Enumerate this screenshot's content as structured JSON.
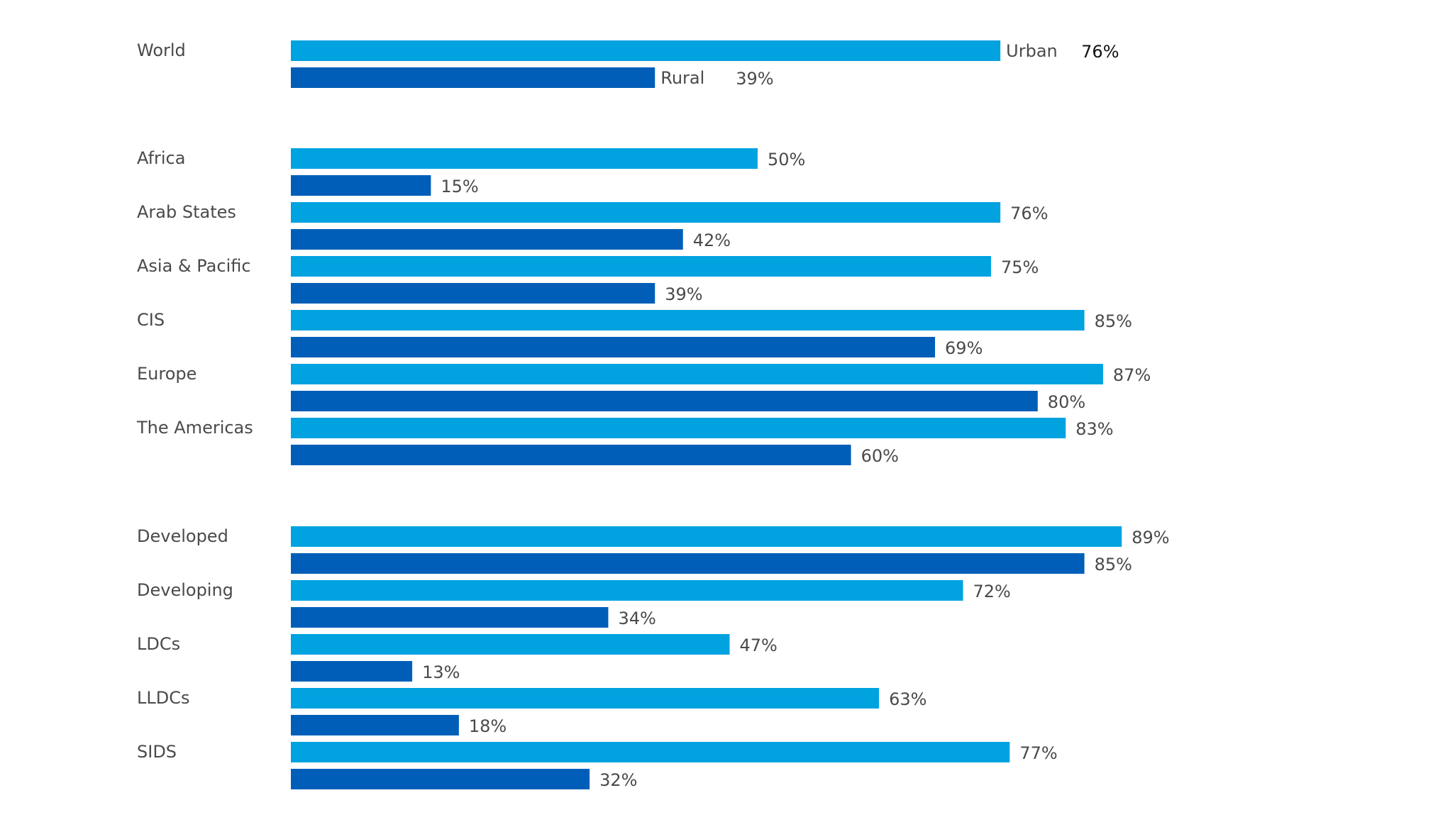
{
  "chart_data": {
    "type": "bar",
    "orientation": "horizontal",
    "categories": [
      "World",
      "Africa",
      "Arab States",
      "Asia & Pacific",
      "CIS",
      "Europe",
      "The Americas",
      "Developed",
      "Developing",
      "LDCs",
      "LLDCs",
      "SIDS"
    ],
    "groups": [
      [
        "World"
      ],
      [
        "Africa",
        "Arab States",
        "Asia & Pacific",
        "CIS",
        "Europe",
        "The Americas"
      ],
      [
        "Developed",
        "Developing",
        "LDCs",
        "LLDCs",
        "SIDS"
      ]
    ],
    "series": [
      {
        "name": "Urban",
        "color": "#00a2e0",
        "values": [
          76,
          50,
          76,
          75,
          85,
          87,
          83,
          89,
          72,
          47,
          63,
          77
        ]
      },
      {
        "name": "Rural",
        "color": "#005eb8",
        "values": [
          39,
          15,
          42,
          39,
          69,
          80,
          60,
          85,
          34,
          13,
          18,
          32
        ]
      }
    ],
    "value_suffix": "%",
    "xlim": [
      0,
      100
    ],
    "title": "",
    "xlabel": "",
    "ylabel": "",
    "grid": false,
    "legend": "inline-on-first-group"
  }
}
